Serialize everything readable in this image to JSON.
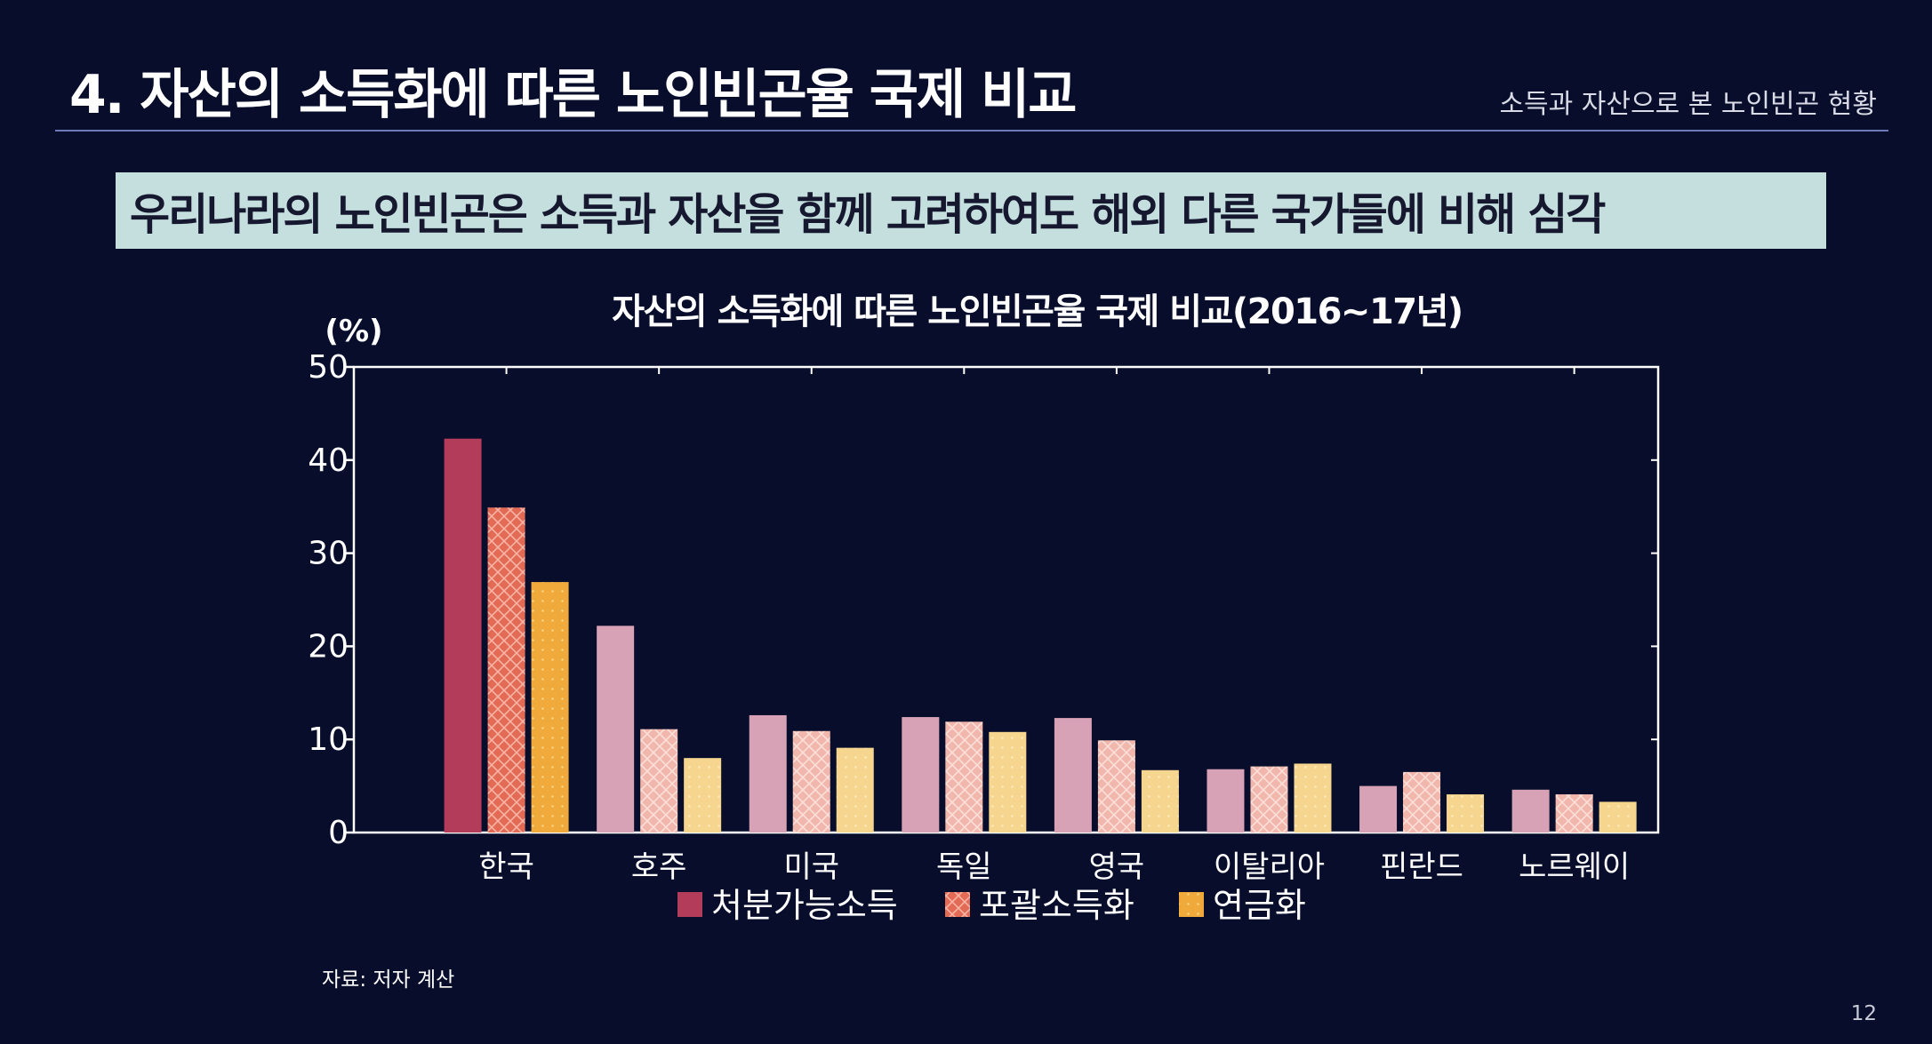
{
  "slide": {
    "title": "4. 자산의 소득화에 따른 노인빈곤율 국제 비교",
    "subtitle": "소득과 자산으로 본 노인빈곤 현황",
    "headline": "우리나라의 노인빈곤은 소득과 자산을 함께 고려하여도 해외 다른 국가들에 비해 심각",
    "source": "자료: 저자 계산",
    "page_number": "12"
  },
  "chart_data": {
    "type": "bar",
    "title": "자산의 소득화에 따른 노인빈곤율 국제 비교(2016~17년)",
    "ylabel": "(%)",
    "xlabel": "",
    "ylim": [
      0,
      50
    ],
    "yticks": [
      "0",
      "10",
      "20",
      "30",
      "40",
      "50"
    ],
    "grid": false,
    "legend_position": "bottom",
    "categories": [
      "한국",
      "호주",
      "미국",
      "독일",
      "영국",
      "이탈리아",
      "핀란드",
      "노르웨이"
    ],
    "series": [
      {
        "name": "처분가능소득",
        "values": [
          42.3,
          22.2,
          12.6,
          12.4,
          12.3,
          6.8,
          5.0,
          4.6
        ]
      },
      {
        "name": "포괄소득화",
        "values": [
          34.9,
          11.1,
          10.9,
          11.9,
          9.9,
          7.1,
          6.5,
          4.1
        ]
      },
      {
        "name": "연금화",
        "values": [
          26.9,
          8.0,
          9.1,
          10.8,
          6.7,
          7.4,
          4.1,
          3.3
        ]
      }
    ],
    "colors": {
      "korea": [
        "#b23c5a",
        "#e36b56",
        "#f0aa3c"
      ],
      "others": [
        "#d7a2b5",
        "#f4bfb4",
        "#f6d68e"
      ],
      "plot_background": "#070d2b",
      "axes": "#ffffff"
    }
  }
}
